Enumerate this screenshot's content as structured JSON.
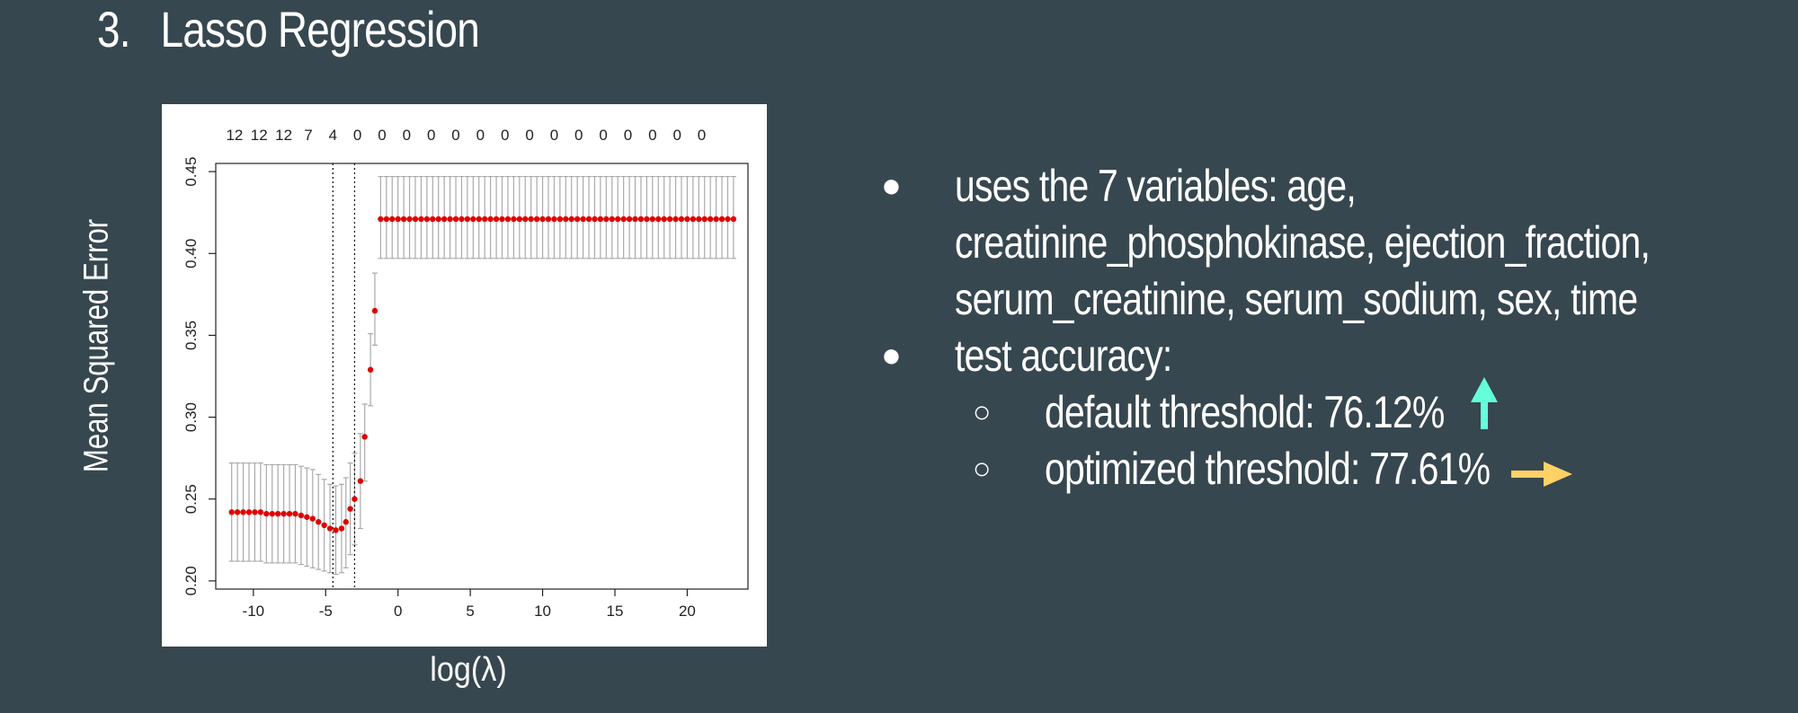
{
  "slide": {
    "number": "3.",
    "title": "Lasso Regression"
  },
  "axes": {
    "xlabel": "log(λ)",
    "ylabel": "Mean Squared Error"
  },
  "chart_data": {
    "type": "scatter",
    "subtype": "cross-validation error curve with error bars",
    "xlabel": "log(λ)",
    "ylabel": "Mean Squared Error",
    "xlim": [
      -12.6,
      24.2
    ],
    "ylim": [
      0.195,
      0.455
    ],
    "x_ticks": [
      -10,
      -5,
      0,
      5,
      10,
      15,
      20
    ],
    "y_ticks": [
      0.2,
      0.25,
      0.3,
      0.35,
      0.4,
      0.45
    ],
    "x_tick_labels": [
      "-10",
      "-5",
      "0",
      "5",
      "10",
      "15",
      "20"
    ],
    "y_tick_labels": [
      "0.20",
      "0.25",
      "0.30",
      "0.35",
      "0.40",
      "0.45"
    ],
    "top_labels": [
      {
        "x": -11.3,
        "label": "12"
      },
      {
        "x": -9.6,
        "label": "12"
      },
      {
        "x": -7.9,
        "label": "12"
      },
      {
        "x": -6.2,
        "label": "7"
      },
      {
        "x": -4.5,
        "label": "4"
      },
      {
        "x": -2.8,
        "label": "0"
      },
      {
        "x": -1.1,
        "label": "0"
      },
      {
        "x": 0.6,
        "label": "0"
      },
      {
        "x": 2.3,
        "label": "0"
      },
      {
        "x": 4.0,
        "label": "0"
      },
      {
        "x": 5.7,
        "label": "0"
      },
      {
        "x": 7.4,
        "label": "0"
      },
      {
        "x": 9.1,
        "label": "0"
      },
      {
        "x": 10.8,
        "label": "0"
      },
      {
        "x": 12.5,
        "label": "0"
      },
      {
        "x": 14.2,
        "label": "0"
      },
      {
        "x": 15.9,
        "label": "0"
      },
      {
        "x": 17.6,
        "label": "0"
      },
      {
        "x": 19.3,
        "label": "0"
      },
      {
        "x": 21.0,
        "label": "0"
      }
    ],
    "vlines": [
      -4.5,
      -3.0
    ],
    "series": [
      {
        "points": [
          {
            "x": -11.5,
            "y": 0.242,
            "lo": 0.212,
            "hi": 0.272
          },
          {
            "x": -11.1,
            "y": 0.242,
            "lo": 0.212,
            "hi": 0.272
          },
          {
            "x": -10.7,
            "y": 0.242,
            "lo": 0.212,
            "hi": 0.272
          },
          {
            "x": -10.3,
            "y": 0.242,
            "lo": 0.212,
            "hi": 0.272
          },
          {
            "x": -9.9,
            "y": 0.242,
            "lo": 0.212,
            "hi": 0.272
          },
          {
            "x": -9.5,
            "y": 0.242,
            "lo": 0.212,
            "hi": 0.272
          },
          {
            "x": -9.1,
            "y": 0.241,
            "lo": 0.211,
            "hi": 0.271
          },
          {
            "x": -8.7,
            "y": 0.241,
            "lo": 0.211,
            "hi": 0.271
          },
          {
            "x": -8.3,
            "y": 0.241,
            "lo": 0.211,
            "hi": 0.271
          },
          {
            "x": -7.9,
            "y": 0.241,
            "lo": 0.211,
            "hi": 0.271
          },
          {
            "x": -7.5,
            "y": 0.241,
            "lo": 0.211,
            "hi": 0.271
          },
          {
            "x": -7.1,
            "y": 0.241,
            "lo": 0.211,
            "hi": 0.271
          },
          {
            "x": -6.7,
            "y": 0.24,
            "lo": 0.21,
            "hi": 0.27
          },
          {
            "x": -6.3,
            "y": 0.239,
            "lo": 0.209,
            "hi": 0.269
          },
          {
            "x": -5.9,
            "y": 0.238,
            "lo": 0.208,
            "hi": 0.268
          },
          {
            "x": -5.5,
            "y": 0.236,
            "lo": 0.207,
            "hi": 0.265
          },
          {
            "x": -5.1,
            "y": 0.234,
            "lo": 0.206,
            "hi": 0.262
          },
          {
            "x": -4.7,
            "y": 0.232,
            "lo": 0.205,
            "hi": 0.259
          },
          {
            "x": -4.3,
            "y": 0.231,
            "lo": 0.204,
            "hi": 0.258
          },
          {
            "x": -3.9,
            "y": 0.232,
            "lo": 0.205,
            "hi": 0.259
          },
          {
            "x": -3.6,
            "y": 0.236,
            "lo": 0.208,
            "hi": 0.263
          },
          {
            "x": -3.3,
            "y": 0.244,
            "lo": 0.216,
            "hi": 0.272
          },
          {
            "x": -3.0,
            "y": 0.25,
            "lo": 0.222,
            "hi": 0.278
          },
          {
            "x": -2.6,
            "y": 0.261,
            "lo": 0.232,
            "hi": 0.29
          },
          {
            "x": -2.3,
            "y": 0.288,
            "lo": 0.261,
            "hi": 0.308
          },
          {
            "x": -1.9,
            "y": 0.329,
            "lo": 0.307,
            "hi": 0.351
          },
          {
            "x": -1.6,
            "y": 0.365,
            "lo": 0.344,
            "hi": 0.388
          },
          {
            "x": -1.2,
            "y": 0.421,
            "lo": 0.397,
            "hi": 0.447
          },
          {
            "x": -0.8,
            "y": 0.421,
            "lo": 0.397,
            "hi": 0.447
          },
          {
            "x": -0.4,
            "y": 0.421,
            "lo": 0.397,
            "hi": 0.447
          },
          {
            "x": 0.0,
            "y": 0.421,
            "lo": 0.397,
            "hi": 0.447
          },
          {
            "x": 0.4,
            "y": 0.421,
            "lo": 0.397,
            "hi": 0.447
          },
          {
            "x": 0.8,
            "y": 0.421,
            "lo": 0.397,
            "hi": 0.447
          },
          {
            "x": 1.2,
            "y": 0.421,
            "lo": 0.397,
            "hi": 0.447
          },
          {
            "x": 1.6,
            "y": 0.421,
            "lo": 0.397,
            "hi": 0.447
          },
          {
            "x": 2.0,
            "y": 0.421,
            "lo": 0.397,
            "hi": 0.447
          },
          {
            "x": 2.4,
            "y": 0.421,
            "lo": 0.397,
            "hi": 0.447
          },
          {
            "x": 2.8,
            "y": 0.421,
            "lo": 0.397,
            "hi": 0.447
          },
          {
            "x": 3.2,
            "y": 0.421,
            "lo": 0.397,
            "hi": 0.447
          },
          {
            "x": 3.6,
            "y": 0.421,
            "lo": 0.397,
            "hi": 0.447
          },
          {
            "x": 4.0,
            "y": 0.421,
            "lo": 0.397,
            "hi": 0.447
          },
          {
            "x": 4.4,
            "y": 0.421,
            "lo": 0.397,
            "hi": 0.447
          },
          {
            "x": 4.8,
            "y": 0.421,
            "lo": 0.397,
            "hi": 0.447
          },
          {
            "x": 5.2,
            "y": 0.421,
            "lo": 0.397,
            "hi": 0.447
          },
          {
            "x": 5.6,
            "y": 0.421,
            "lo": 0.397,
            "hi": 0.447
          },
          {
            "x": 6.0,
            "y": 0.421,
            "lo": 0.397,
            "hi": 0.447
          },
          {
            "x": 6.4,
            "y": 0.421,
            "lo": 0.397,
            "hi": 0.447
          },
          {
            "x": 6.8,
            "y": 0.421,
            "lo": 0.397,
            "hi": 0.447
          },
          {
            "x": 7.2,
            "y": 0.421,
            "lo": 0.397,
            "hi": 0.447
          },
          {
            "x": 7.6,
            "y": 0.421,
            "lo": 0.397,
            "hi": 0.447
          },
          {
            "x": 8.0,
            "y": 0.421,
            "lo": 0.397,
            "hi": 0.447
          },
          {
            "x": 8.4,
            "y": 0.421,
            "lo": 0.397,
            "hi": 0.447
          },
          {
            "x": 8.8,
            "y": 0.421,
            "lo": 0.397,
            "hi": 0.447
          },
          {
            "x": 9.2,
            "y": 0.421,
            "lo": 0.397,
            "hi": 0.447
          },
          {
            "x": 9.6,
            "y": 0.421,
            "lo": 0.397,
            "hi": 0.447
          },
          {
            "x": 10.0,
            "y": 0.421,
            "lo": 0.397,
            "hi": 0.447
          },
          {
            "x": 10.4,
            "y": 0.421,
            "lo": 0.397,
            "hi": 0.447
          },
          {
            "x": 10.8,
            "y": 0.421,
            "lo": 0.397,
            "hi": 0.447
          },
          {
            "x": 11.2,
            "y": 0.421,
            "lo": 0.397,
            "hi": 0.447
          },
          {
            "x": 11.6,
            "y": 0.421,
            "lo": 0.397,
            "hi": 0.447
          },
          {
            "x": 12.0,
            "y": 0.421,
            "lo": 0.397,
            "hi": 0.447
          },
          {
            "x": 12.4,
            "y": 0.421,
            "lo": 0.397,
            "hi": 0.447
          },
          {
            "x": 12.8,
            "y": 0.421,
            "lo": 0.397,
            "hi": 0.447
          },
          {
            "x": 13.2,
            "y": 0.421,
            "lo": 0.397,
            "hi": 0.447
          },
          {
            "x": 13.6,
            "y": 0.421,
            "lo": 0.397,
            "hi": 0.447
          },
          {
            "x": 14.0,
            "y": 0.421,
            "lo": 0.397,
            "hi": 0.447
          },
          {
            "x": 14.4,
            "y": 0.421,
            "lo": 0.397,
            "hi": 0.447
          },
          {
            "x": 14.8,
            "y": 0.421,
            "lo": 0.397,
            "hi": 0.447
          },
          {
            "x": 15.2,
            "y": 0.421,
            "lo": 0.397,
            "hi": 0.447
          },
          {
            "x": 15.6,
            "y": 0.421,
            "lo": 0.397,
            "hi": 0.447
          },
          {
            "x": 16.0,
            "y": 0.421,
            "lo": 0.397,
            "hi": 0.447
          },
          {
            "x": 16.4,
            "y": 0.421,
            "lo": 0.397,
            "hi": 0.447
          },
          {
            "x": 16.8,
            "y": 0.421,
            "lo": 0.397,
            "hi": 0.447
          },
          {
            "x": 17.2,
            "y": 0.421,
            "lo": 0.397,
            "hi": 0.447
          },
          {
            "x": 17.6,
            "y": 0.421,
            "lo": 0.397,
            "hi": 0.447
          },
          {
            "x": 18.0,
            "y": 0.421,
            "lo": 0.397,
            "hi": 0.447
          },
          {
            "x": 18.4,
            "y": 0.421,
            "lo": 0.397,
            "hi": 0.447
          },
          {
            "x": 18.8,
            "y": 0.421,
            "lo": 0.397,
            "hi": 0.447
          },
          {
            "x": 19.2,
            "y": 0.421,
            "lo": 0.397,
            "hi": 0.447
          },
          {
            "x": 19.6,
            "y": 0.421,
            "lo": 0.397,
            "hi": 0.447
          },
          {
            "x": 20.0,
            "y": 0.421,
            "lo": 0.397,
            "hi": 0.447
          },
          {
            "x": 20.4,
            "y": 0.421,
            "lo": 0.397,
            "hi": 0.447
          },
          {
            "x": 20.8,
            "y": 0.421,
            "lo": 0.397,
            "hi": 0.447
          },
          {
            "x": 21.2,
            "y": 0.421,
            "lo": 0.397,
            "hi": 0.447
          },
          {
            "x": 21.6,
            "y": 0.421,
            "lo": 0.397,
            "hi": 0.447
          },
          {
            "x": 22.0,
            "y": 0.421,
            "lo": 0.397,
            "hi": 0.447
          },
          {
            "x": 22.4,
            "y": 0.421,
            "lo": 0.397,
            "hi": 0.447
          },
          {
            "x": 22.8,
            "y": 0.421,
            "lo": 0.397,
            "hi": 0.447
          },
          {
            "x": 23.2,
            "y": 0.421,
            "lo": 0.397,
            "hi": 0.447
          }
        ]
      }
    ],
    "colors": {
      "point": "#e00000",
      "errorbar": "#aaaaaa",
      "vline": "#000000"
    },
    "grid": false,
    "legend": "none"
  },
  "bullets": [
    {
      "level": 1,
      "lines": [
        "uses the 7 variables: age,",
        "creatinine_phosphokinase, ejection_fraction,",
        "serum_creatinine, serum_sodium, sex, time"
      ]
    },
    {
      "level": 1,
      "lines": [
        "test accuracy:"
      ]
    },
    {
      "level": 2,
      "lines": [
        "default threshold: 76.12%"
      ],
      "icon": "up-arrow-icon",
      "icon_color": "#64ffda"
    },
    {
      "level": 2,
      "lines": [
        "optimized threshold: 77.61%"
      ],
      "icon": "right-arrow-icon",
      "icon_color": "#ffd166"
    }
  ],
  "bullet_marks": {
    "level1": "●",
    "level2": "○"
  },
  "colors": {
    "background": "#37474f",
    "text": "#ffffff"
  }
}
